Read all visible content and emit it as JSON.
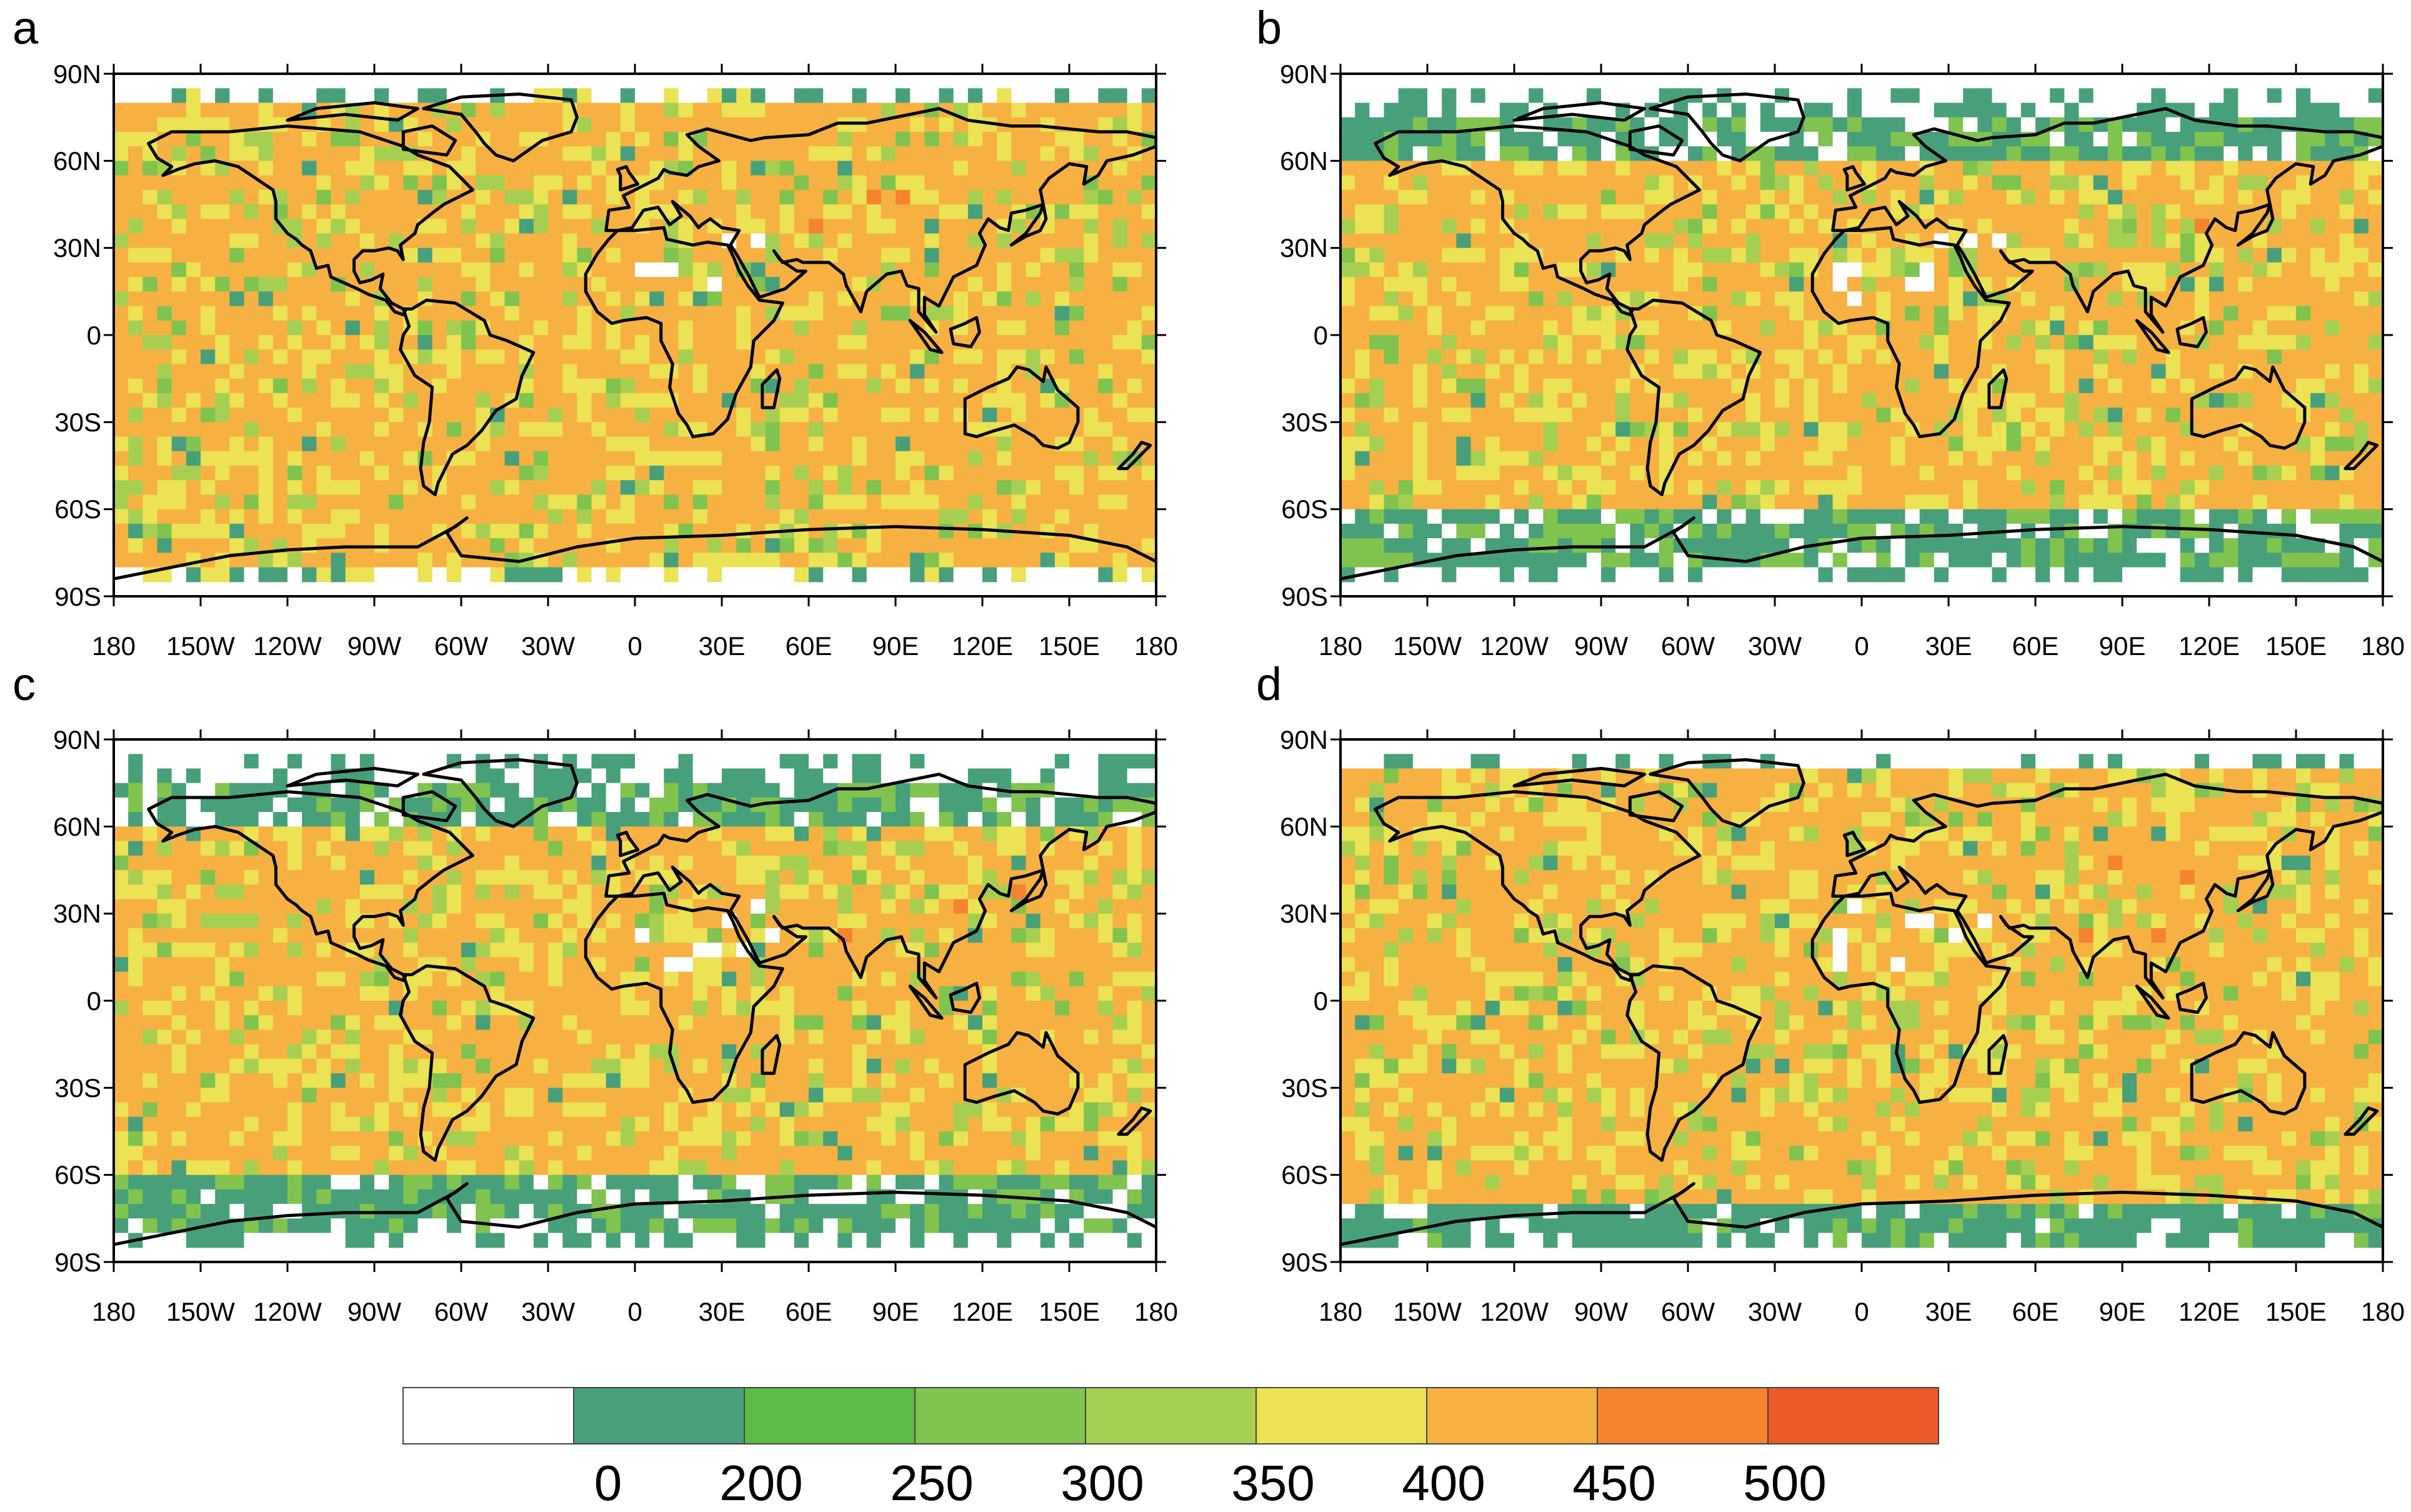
{
  "figure": {
    "panels": [
      {
        "letter": "a"
      },
      {
        "letter": "b"
      },
      {
        "letter": "c"
      },
      {
        "letter": "d"
      }
    ],
    "lat_ticks": [
      "90N",
      "60N",
      "30N",
      "0",
      "30S",
      "60S",
      "90S"
    ],
    "lon_ticks": [
      "180",
      "150W",
      "120W",
      "90W",
      "60W",
      "30W",
      "0",
      "30E",
      "60E",
      "90E",
      "120E",
      "150E",
      "180"
    ],
    "colorbar": {
      "colors": [
        "#ffffff",
        "#47a07a",
        "#5bbb45",
        "#80c34f",
        "#a6cf52",
        "#ebe254",
        "#f6b142",
        "#f5832f",
        "#eb5a2a"
      ],
      "labels": [
        "0",
        "200",
        "250",
        "300",
        "350",
        "400",
        "450",
        "500"
      ]
    }
  },
  "chart_data": {
    "type": "heatmap",
    "panels": [
      "a",
      "b",
      "c",
      "d"
    ],
    "x_axis": {
      "ticks": [
        "180",
        "150W",
        "120W",
        "90W",
        "60W",
        "30W",
        "0",
        "30E",
        "60E",
        "90E",
        "120E",
        "150E",
        "180"
      ],
      "range": [
        -180,
        180
      ]
    },
    "y_axis": {
      "ticks": [
        "90N",
        "60N",
        "30N",
        "0",
        "30S",
        "60S",
        "90S"
      ],
      "range": [
        -90,
        90
      ]
    },
    "color_levels": [
      0,
      200,
      250,
      300,
      350,
      400,
      450,
      500
    ],
    "dominant_class": "400-450",
    "grid": "off"
  }
}
